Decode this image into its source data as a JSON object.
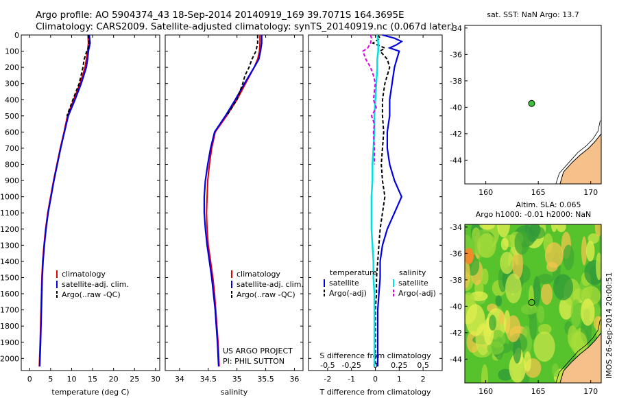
{
  "header": {
    "line1": "Argo profile: AO 5904374_43 18-Sep-2014 20140919_169 39.7071S 164.3695E",
    "line2": "Climatology: CARS2009. Satellite-adjusted climatology: synTS_20140919.nc (0.067d later)"
  },
  "colors": {
    "climatology": "#e00000",
    "satellite": "#0000e0",
    "argo": "#000000",
    "salinity_sat": "#00e0e0",
    "salinity_argo": "#e000e0",
    "land": "#f5c08a",
    "float_marker": "#3cbf3c"
  },
  "chart_data": [
    {
      "id": "temperature",
      "type": "line",
      "xlabel": "temperature (deg C)",
      "ylabel": "",
      "xlim": [
        -2,
        31
      ],
      "ylim": [
        2075,
        0
      ],
      "xticks": [
        0,
        5,
        10,
        15,
        20,
        25,
        30
      ],
      "yticks": [
        0,
        100,
        200,
        300,
        400,
        500,
        600,
        700,
        800,
        900,
        1000,
        1100,
        1200,
        1300,
        1400,
        1500,
        1600,
        1700,
        1800,
        1900,
        2000
      ],
      "legend": [
        "climatology",
        "satellite-adj. clim.",
        "Argo(..raw -QC)"
      ],
      "series": [
        {
          "name": "climatology",
          "depth": [
            0,
            50,
            100,
            150,
            200,
            300,
            400,
            500,
            600,
            700,
            800,
            900,
            1000,
            1100,
            1200,
            1300,
            1400,
            1500,
            1600,
            1700,
            1800,
            1900,
            2050
          ],
          "values": [
            13.9,
            14.0,
            13.8,
            13.5,
            13.2,
            12.0,
            10.5,
            9.0,
            8.2,
            7.3,
            6.5,
            5.7,
            5.0,
            4.3,
            3.8,
            3.4,
            3.1,
            2.9,
            2.8,
            2.7,
            2.6,
            2.5,
            2.3
          ]
        },
        {
          "name": "satellite-adj. clim.",
          "depth": [
            0,
            50,
            100,
            150,
            200,
            300,
            400,
            500,
            600,
            700,
            800,
            900,
            1000,
            1100,
            1200,
            1300,
            1400,
            1500,
            1600,
            1700,
            1800,
            1900,
            2050
          ],
          "values": [
            14.2,
            14.4,
            14.0,
            13.8,
            13.5,
            12.3,
            10.8,
            9.2,
            8.3,
            7.4,
            6.6,
            5.8,
            5.1,
            4.4,
            3.9,
            3.5,
            3.2,
            3.0,
            2.9,
            2.8,
            2.7,
            2.6,
            2.4
          ]
        },
        {
          "name": "Argo(..raw -QC)",
          "depth": [
            0,
            50,
            80,
            100,
            150,
            200,
            300,
            400,
            500
          ],
          "values": [
            14.0,
            14.1,
            14.0,
            13.6,
            13.0,
            12.7,
            11.8,
            10.3,
            8.9
          ]
        }
      ]
    },
    {
      "id": "salinity",
      "type": "line",
      "xlabel": "salinity",
      "ylabel": "",
      "xlim": [
        33.75,
        36.15
      ],
      "ylim": [
        2075,
        0
      ],
      "xticks": [
        34,
        34.5,
        35,
        35.5,
        36
      ],
      "xticklabels": [
        "34",
        "34.5",
        "35",
        "35.5",
        "36"
      ],
      "legend": [
        "climatology",
        "satellite-adj. clim.",
        "Argo(..raw -QC)"
      ],
      "annotation": [
        "US ARGO PROJECT",
        "PI: PHIL SUTTON"
      ],
      "series": [
        {
          "name": "climatology",
          "depth": [
            0,
            50,
            100,
            150,
            200,
            300,
            400,
            500,
            600,
            700,
            800,
            900,
            1000,
            1100,
            1200,
            1300,
            1400,
            1500,
            1600,
            1700,
            1800,
            1900,
            2050
          ],
          "values": [
            35.4,
            35.4,
            35.39,
            35.36,
            35.3,
            35.15,
            35.0,
            34.82,
            34.62,
            34.56,
            34.52,
            34.49,
            34.48,
            34.47,
            34.48,
            34.5,
            34.54,
            34.58,
            34.61,
            34.63,
            34.65,
            34.67,
            34.69
          ]
        },
        {
          "name": "satellite-adj. clim.",
          "depth": [
            0,
            50,
            100,
            150,
            200,
            300,
            400,
            500,
            600,
            700,
            800,
            900,
            1000,
            1100,
            1200,
            1300,
            1400,
            1500,
            1600,
            1700,
            1800,
            1900,
            2050
          ],
          "values": [
            35.43,
            35.43,
            35.41,
            35.38,
            35.3,
            35.13,
            34.97,
            34.8,
            34.61,
            34.54,
            34.49,
            34.45,
            34.43,
            34.43,
            34.45,
            34.48,
            34.52,
            34.56,
            34.59,
            34.62,
            34.64,
            34.66,
            34.68
          ]
        },
        {
          "name": "Argo(..raw -QC)",
          "depth": [
            0,
            50,
            100,
            150,
            200,
            250,
            300,
            400,
            500
          ],
          "values": [
            35.36,
            35.36,
            35.33,
            35.26,
            35.21,
            35.14,
            35.1,
            35.0,
            34.82
          ]
        }
      ]
    },
    {
      "id": "difference",
      "type": "line",
      "xlabel": "T difference from climatology",
      "toplabel": "S difference from climatology",
      "xlim": [
        -2.8,
        2.8
      ],
      "ylim": [
        2075,
        0
      ],
      "xticks": [
        -2,
        -1,
        0,
        1,
        2
      ],
      "sticks": [
        -0.5,
        -0.25,
        0,
        0.25,
        0.5
      ],
      "xticklabels": [
        "-2",
        "-1",
        "0",
        "1",
        "2"
      ],
      "sticklabels": [
        "-0.5",
        "-0.25",
        "0",
        "0.25",
        "0.5"
      ],
      "legend_temperature": {
        "title": "temperature",
        "items": [
          "satellite",
          "Argo(-adj)"
        ]
      },
      "legend_salinity": {
        "title": "salinity",
        "items": [
          "satellite",
          "Argo(-adj)"
        ]
      },
      "series": [
        {
          "name": "temperature satellite",
          "depth": [
            0,
            20,
            40,
            60,
            80,
            100,
            150,
            200,
            300,
            400,
            500,
            600,
            700,
            800,
            900,
            1000,
            1100,
            1200,
            1300,
            1400,
            1500,
            1600,
            1700,
            1800,
            1900,
            2050
          ],
          "values": [
            0.3,
            0.8,
            1.1,
            0.9,
            0.6,
            1.0,
            0.9,
            0.8,
            0.7,
            0.6,
            0.6,
            0.5,
            0.5,
            0.6,
            0.8,
            1.1,
            0.8,
            0.5,
            0.3,
            0.2,
            0.2,
            0.15,
            0.1,
            0.1,
            0.1,
            0.1
          ]
        },
        {
          "name": "temperature Argo(-adj)",
          "depth": [
            0,
            20,
            50,
            80,
            100,
            150,
            200,
            300,
            400,
            500,
            600,
            700,
            800,
            900,
            1000,
            1100,
            1200,
            1300,
            1400,
            1500,
            1600,
            1700,
            1800,
            1900,
            2050
          ],
          "values": [
            0.1,
            0.2,
            -0.1,
            0.4,
            0.2,
            0.5,
            0.6,
            0.4,
            0.3,
            0.3,
            0.35,
            0.3,
            0.25,
            0.3,
            0.4,
            0.3,
            0.2,
            0.15,
            0.1,
            0.05,
            0.05,
            0.0,
            0.0,
            0.0,
            0.0
          ]
        },
        {
          "name": "salinity satellite",
          "depth": [
            0,
            50,
            100,
            150,
            200,
            300,
            400,
            500,
            600,
            700,
            800,
            900,
            1000,
            1100,
            1200,
            1300,
            1400,
            1500,
            1600,
            1700,
            1800,
            1900,
            2050
          ],
          "values": [
            0.02,
            0.03,
            0.03,
            0.02,
            0.02,
            0.01,
            0.0,
            -0.01,
            -0.01,
            -0.02,
            -0.03,
            -0.03,
            -0.04,
            -0.04,
            -0.04,
            -0.03,
            -0.02,
            -0.02,
            -0.01,
            -0.01,
            -0.01,
            -0.01,
            -0.01
          ]
        },
        {
          "name": "salinity Argo(-adj)",
          "depth": [
            0,
            20,
            50,
            80,
            100,
            150,
            200,
            250,
            300,
            400,
            450,
            500,
            550,
            600,
            700,
            800
          ],
          "values": [
            -0.05,
            -0.04,
            -0.05,
            -0.08,
            -0.13,
            -0.1,
            -0.05,
            -0.02,
            0.0,
            -0.02,
            0.01,
            -0.04,
            -0.01,
            -0.02,
            -0.01,
            -0.01
          ]
        }
      ]
    },
    {
      "id": "map-sst",
      "type": "scatter",
      "title": "sat. SST: NaN Argo: 13.7",
      "xlim": [
        158,
        171
      ],
      "ylim": [
        -45.8,
        -33.8
      ],
      "xticks": [
        160,
        165,
        170
      ],
      "yticks": [
        -34,
        -36,
        -38,
        -40,
        -42,
        -44
      ],
      "float": {
        "lon": 164.37,
        "lat": -39.71
      }
    },
    {
      "id": "map-sla",
      "type": "heatmap",
      "title_line1": "Altim. SLA: 0.065",
      "title_line2": "Argo h1000: -0.01 h2000: NaN",
      "xlim": [
        158,
        171
      ],
      "ylim": [
        -45.8,
        -33.8
      ],
      "xticks": [
        160,
        165,
        170
      ],
      "yticks": [
        -34,
        -36,
        -38,
        -40,
        -42,
        -44
      ],
      "float": {
        "lon": 164.37,
        "lat": -39.71
      }
    }
  ],
  "footer": {
    "imos": "IMOS 26-Sep-2014 20:00:51"
  }
}
